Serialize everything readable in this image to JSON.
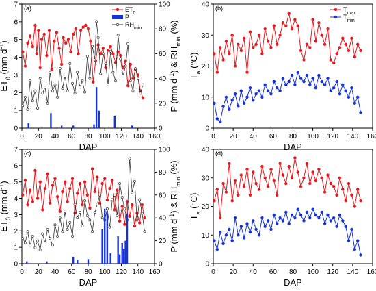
{
  "chart_data": [
    {
      "id": "a",
      "panel_label": "(a)",
      "type": "line",
      "xlabel": "DAP",
      "ylabel_left": "ET0 (mm d-1)",
      "ylabel_right": "P (mm d-1) & RHmin (%)",
      "xlim": [
        0,
        160
      ],
      "xticks": [
        0,
        20,
        40,
        60,
        80,
        100,
        120,
        140,
        160
      ],
      "ylim_left": [
        0,
        7
      ],
      "yticks_left": [
        0,
        1,
        2,
        3,
        4,
        5,
        6,
        7
      ],
      "ylim_right": [
        0,
        100
      ],
      "yticks_right": [
        0,
        20,
        40,
        60,
        80,
        100
      ],
      "legend": [
        {
          "label": "ET0",
          "color": "#e8191e",
          "marker": "circle"
        },
        {
          "label": "P",
          "color": "#1433d6",
          "marker": "bar"
        },
        {
          "label": "RHmin",
          "color": "#333333",
          "marker": "open-circle"
        }
      ],
      "series": [
        {
          "name": "ET0",
          "axis": "left",
          "color": "#e8191e",
          "style": "line-filled-circle",
          "x": [
            1,
            4,
            7,
            10,
            13,
            16,
            18,
            20,
            22,
            24,
            27,
            30,
            33,
            36,
            39,
            42,
            45,
            48,
            50,
            53,
            56,
            59,
            62,
            65,
            68,
            71,
            74,
            77,
            80,
            83,
            86,
            89,
            92,
            95,
            98,
            101,
            104,
            107,
            110,
            113,
            116,
            119,
            122,
            125,
            128,
            131,
            134,
            137,
            140,
            143,
            146
          ],
          "y": [
            4.3,
            3.5,
            4.8,
            5.2,
            4.6,
            5.8,
            4.2,
            5.5,
            3.4,
            5.0,
            5.3,
            4.1,
            5.5,
            3.3,
            4.9,
            5.4,
            4.5,
            3.6,
            5.1,
            4.8,
            5.0,
            4.3,
            5.3,
            5.6,
            4.2,
            5.5,
            5.7,
            5.8,
            5.6,
            4.9,
            2.6,
            3.8,
            4.7,
            4.2,
            4.5,
            3.4,
            4.4,
            4.6,
            4.2,
            3.7,
            4.3,
            4.1,
            3.4,
            3.8,
            2.4,
            3.6,
            2.8,
            3.3,
            3.0,
            2.1,
            1.7
          ]
        },
        {
          "name": "RHmin",
          "axis": "right",
          "color": "#333333",
          "style": "line-open-circle",
          "x": [
            1,
            4,
            7,
            10,
            13,
            16,
            19,
            22,
            25,
            28,
            31,
            34,
            37,
            40,
            43,
            46,
            49,
            52,
            55,
            58,
            61,
            64,
            67,
            70,
            73,
            76,
            79,
            82,
            85,
            88,
            90,
            92,
            95,
            98,
            101,
            104,
            107,
            110,
            113,
            116,
            119,
            122,
            125,
            128,
            131,
            134,
            137,
            140,
            143,
            146
          ],
          "y": [
            18,
            25,
            15,
            38,
            22,
            30,
            16,
            40,
            28,
            33,
            20,
            45,
            30,
            35,
            25,
            48,
            32,
            42,
            30,
            52,
            36,
            28,
            45,
            33,
            38,
            29,
            58,
            40,
            66,
            55,
            86,
            73,
            44,
            60,
            52,
            35,
            62,
            45,
            38,
            75,
            56,
            42,
            50,
            68,
            38,
            30,
            48,
            40,
            28,
            35
          ]
        },
        {
          "name": "P",
          "axis": "right",
          "color": "#1433d6",
          "style": "bar",
          "x": [
            8,
            35,
            48,
            62,
            87,
            90,
            93,
            112,
            133
          ],
          "y": [
            4,
            12,
            2,
            2,
            3,
            33,
            14,
            10,
            2
          ]
        }
      ]
    },
    {
      "id": "b",
      "panel_label": "(b)",
      "type": "line",
      "xlabel": "DAP",
      "ylabel": "Ta (°C)",
      "xlim": [
        0,
        160
      ],
      "xticks": [
        0,
        20,
        40,
        60,
        80,
        100,
        120,
        140,
        160
      ],
      "ylim": [
        0,
        40
      ],
      "yticks": [
        0,
        10,
        20,
        30,
        40
      ],
      "legend": [
        {
          "label": "Tmax",
          "color": "#e8191e"
        },
        {
          "label": "Tmin",
          "color": "#1433d6"
        }
      ],
      "series": [
        {
          "name": "Tmax",
          "color": "#e8191e",
          "x": [
            1,
            4,
            7,
            10,
            13,
            16,
            19,
            22,
            25,
            28,
            31,
            34,
            37,
            40,
            43,
            46,
            49,
            52,
            55,
            58,
            61,
            64,
            67,
            70,
            73,
            76,
            79,
            82,
            85,
            88,
            91,
            94,
            97,
            100,
            103,
            106,
            109,
            112,
            115,
            118,
            121,
            124,
            127,
            130,
            133,
            136,
            139,
            142,
            145,
            148
          ],
          "y": [
            24,
            18,
            26,
            22,
            28,
            24,
            30,
            20,
            27,
            25,
            29,
            18,
            31,
            26,
            27,
            30,
            24,
            32,
            28,
            26,
            33,
            27,
            30,
            34,
            33,
            37,
            32,
            35,
            33,
            25,
            22,
            27,
            26,
            35,
            28,
            34,
            30,
            27,
            32,
            22,
            21,
            24,
            26,
            29,
            27,
            25,
            29,
            23,
            27,
            25
          ]
        },
        {
          "name": "Tmin",
          "color": "#1433d6",
          "x": [
            1,
            4,
            7,
            10,
            13,
            16,
            19,
            22,
            25,
            28,
            31,
            34,
            37,
            40,
            43,
            46,
            49,
            52,
            55,
            58,
            61,
            64,
            67,
            70,
            73,
            76,
            79,
            82,
            85,
            88,
            91,
            94,
            97,
            100,
            103,
            106,
            109,
            112,
            115,
            118,
            121,
            124,
            127,
            130,
            133,
            136,
            139,
            142,
            145,
            148
          ],
          "y": [
            8,
            3,
            2,
            7,
            10,
            6,
            9,
            11,
            7,
            12,
            8,
            10,
            13,
            9,
            11,
            12,
            10,
            14,
            12,
            11,
            15,
            13,
            12,
            16,
            14,
            15,
            17,
            14,
            18,
            16,
            15,
            17,
            14,
            16,
            13,
            17,
            15,
            14,
            16,
            12,
            13,
            15,
            11,
            14,
            12,
            10,
            13,
            8,
            10,
            5
          ]
        }
      ]
    },
    {
      "id": "c",
      "panel_label": "(c)",
      "type": "line",
      "xlabel": "DAP",
      "ylabel_left": "ET0 (mm d-1)",
      "ylabel_right": "P (mm d-1) & RHmin (%)",
      "xlim": [
        0,
        160
      ],
      "xticks": [
        0,
        20,
        40,
        60,
        80,
        100,
        120,
        140,
        160
      ],
      "ylim_left": [
        0,
        7
      ],
      "yticks_left": [
        0,
        1,
        2,
        3,
        4,
        5,
        6,
        7
      ],
      "ylim_right": [
        0,
        100
      ],
      "yticks_right": [
        0,
        20,
        40,
        60,
        80,
        100
      ],
      "series": [
        {
          "name": "ET0",
          "axis": "left",
          "color": "#e8191e",
          "style": "line-filled-circle",
          "x": [
            1,
            4,
            7,
            10,
            13,
            16,
            19,
            22,
            25,
            28,
            31,
            34,
            37,
            40,
            43,
            46,
            49,
            52,
            55,
            58,
            61,
            64,
            67,
            70,
            73,
            76,
            79,
            82,
            85,
            88,
            91,
            94,
            97,
            100,
            103,
            106,
            109,
            112,
            115,
            118,
            121,
            124,
            127,
            130,
            133,
            136,
            139,
            142,
            145,
            148
          ],
          "y": [
            4.2,
            5.1,
            3.6,
            4.5,
            3.8,
            5.7,
            4.0,
            5.0,
            3.3,
            4.6,
            5.5,
            3.7,
            4.8,
            5.2,
            4.1,
            3.2,
            4.4,
            5.0,
            3.8,
            4.6,
            5.2,
            3.1,
            4.3,
            4.9,
            3.6,
            5.0,
            4.2,
            3.4,
            5.8,
            4.4,
            5.3,
            3.7,
            4.9,
            5.2,
            3.9,
            4.6,
            5.1,
            3.3,
            4.5,
            2.6,
            3.5,
            2.4,
            3.8,
            2.9,
            3.6,
            2.3,
            3.1,
            2.5,
            3.6,
            2.8
          ]
        },
        {
          "name": "RHmin",
          "axis": "right",
          "color": "#333333",
          "style": "line-open-circle",
          "x": [
            1,
            4,
            7,
            10,
            13,
            16,
            19,
            22,
            25,
            28,
            31,
            34,
            37,
            40,
            43,
            46,
            49,
            52,
            55,
            58,
            61,
            64,
            67,
            70,
            73,
            76,
            79,
            82,
            85,
            88,
            91,
            94,
            97,
            100,
            103,
            106,
            109,
            112,
            115,
            118,
            121,
            124,
            127,
            130,
            133,
            136,
            139,
            142,
            145,
            148
          ],
          "y": [
            22,
            18,
            28,
            16,
            24,
            14,
            20,
            12,
            26,
            18,
            30,
            22,
            16,
            34,
            24,
            40,
            28,
            46,
            30,
            36,
            24,
            52,
            40,
            45,
            33,
            55,
            42,
            38,
            28,
            45,
            52,
            60,
            40,
            38,
            48,
            32,
            56,
            60,
            42,
            70,
            58,
            48,
            38,
            92,
            62,
            72,
            38,
            56,
            44,
            28
          ]
        },
        {
          "name": "P",
          "axis": "right",
          "color": "#1433d6",
          "style": "bar",
          "x": [
            6,
            30,
            62,
            67,
            80,
            97,
            100,
            103,
            107,
            116,
            118,
            121,
            123,
            125,
            127
          ],
          "y": [
            2,
            2,
            6,
            3,
            4,
            30,
            48,
            44,
            9,
            24,
            8,
            18,
            13,
            20,
            44
          ]
        }
      ]
    },
    {
      "id": "d",
      "panel_label": "(d)",
      "type": "line",
      "xlabel": "DAP",
      "ylabel": "Ta (°C)",
      "xlim": [
        0,
        160
      ],
      "xticks": [
        0,
        20,
        40,
        60,
        80,
        100,
        120,
        140,
        160
      ],
      "ylim": [
        0,
        40
      ],
      "yticks": [
        0,
        10,
        20,
        30,
        40
      ],
      "series": [
        {
          "name": "Tmax",
          "color": "#e8191e",
          "x": [
            1,
            4,
            7,
            10,
            13,
            16,
            19,
            22,
            25,
            28,
            31,
            34,
            37,
            40,
            43,
            46,
            49,
            52,
            55,
            58,
            61,
            64,
            67,
            70,
            73,
            76,
            79,
            82,
            85,
            88,
            91,
            94,
            97,
            100,
            103,
            106,
            109,
            112,
            115,
            118,
            121,
            124,
            127,
            130,
            133,
            136,
            139,
            142,
            145,
            148
          ],
          "y": [
            22,
            26,
            16,
            28,
            25,
            35,
            22,
            29,
            24,
            31,
            27,
            33,
            24,
            32,
            28,
            26,
            34,
            30,
            27,
            33,
            29,
            24,
            35,
            31,
            28,
            34,
            30,
            37,
            32,
            27,
            30,
            35,
            28,
            32,
            29,
            33,
            30,
            25,
            31,
            28,
            27,
            24,
            30,
            26,
            22,
            28,
            24,
            20,
            26,
            22
          ]
        },
        {
          "name": "Tmin",
          "color": "#1433d6",
          "x": [
            1,
            4,
            7,
            10,
            13,
            16,
            19,
            22,
            25,
            28,
            31,
            34,
            37,
            40,
            43,
            46,
            49,
            52,
            55,
            58,
            61,
            64,
            67,
            70,
            73,
            76,
            79,
            82,
            85,
            88,
            91,
            94,
            97,
            100,
            103,
            106,
            109,
            112,
            115,
            118,
            121,
            124,
            127,
            130,
            133,
            136,
            139,
            142,
            145,
            148
          ],
          "y": [
            8,
            5,
            11,
            7,
            10,
            12,
            8,
            16,
            10,
            13,
            9,
            14,
            11,
            15,
            12,
            10,
            16,
            13,
            15,
            12,
            17,
            14,
            16,
            15,
            18,
            14,
            17,
            16,
            19,
            17,
            15,
            18,
            16,
            19,
            17,
            16,
            18,
            14,
            17,
            15,
            16,
            13,
            17,
            15,
            13,
            8,
            12,
            5,
            8,
            3
          ]
        }
      ]
    }
  ]
}
